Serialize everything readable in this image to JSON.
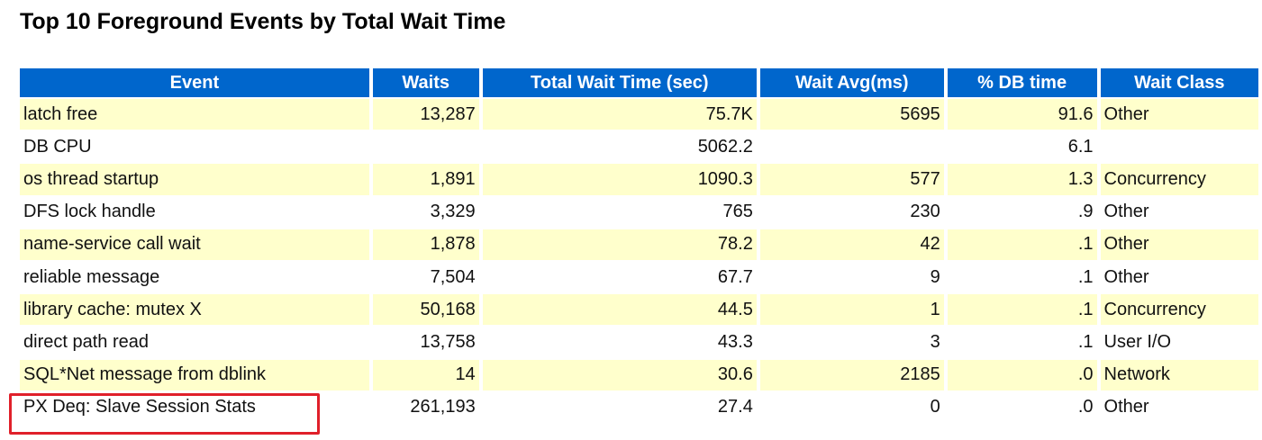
{
  "header": {
    "title": "Top 10 Foreground Events by Total Wait Time"
  },
  "table": {
    "columns": [
      "Event",
      "Waits",
      "Total Wait Time (sec)",
      "Wait Avg(ms)",
      "% DB time",
      "Wait Class"
    ],
    "rows": [
      [
        "latch free",
        "13,287",
        "75.7K",
        "5695",
        "91.6",
        "Other"
      ],
      [
        "DB CPU",
        null,
        "5062.2",
        null,
        "6.1",
        null
      ],
      [
        "os thread startup",
        "1,891",
        "1090.3",
        "577",
        "1.3",
        "Concurrency"
      ],
      [
        "DFS lock handle",
        "3,329",
        "765",
        "230",
        ".9",
        "Other"
      ],
      [
        "name-service call wait",
        "1,878",
        "78.2",
        "42",
        ".1",
        "Other"
      ],
      [
        "reliable message",
        "7,504",
        "67.7",
        "9",
        ".1",
        "Other"
      ],
      [
        "library cache: mutex X",
        "50,168",
        "44.5",
        "1",
        ".1",
        "Concurrency"
      ],
      [
        "direct path read",
        "13,758",
        "43.3",
        "3",
        ".1",
        "User I/O"
      ],
      [
        "SQL*Net message from dblink",
        "14",
        "30.6",
        "2185",
        ".0",
        "Network"
      ],
      [
        "PX Deq: Slave Session Stats",
        "261,193",
        "27.4",
        "0",
        ".0",
        "Other"
      ]
    ]
  }
}
